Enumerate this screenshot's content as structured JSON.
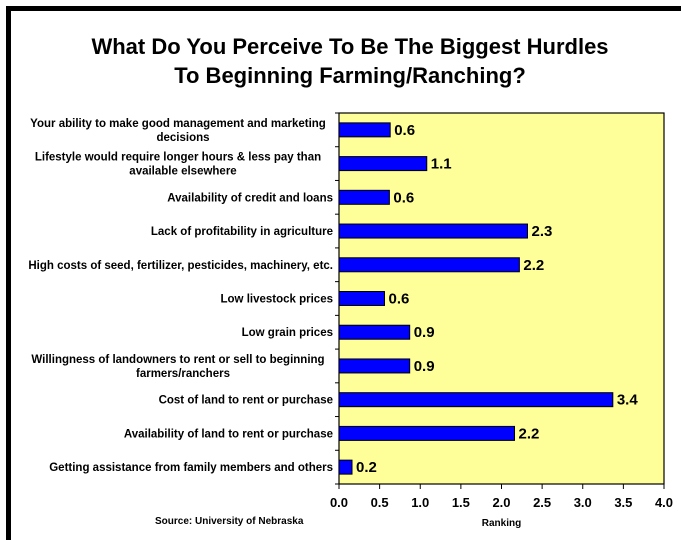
{
  "source": "Source:  University of Nebraska",
  "chart_data": {
    "type": "bar",
    "orientation": "horizontal",
    "title": [
      "What Do You Perceive To Be The Biggest Hurdles",
      "To Beginning Farming/Ranching?"
    ],
    "xlabel": "Ranking",
    "xlim": [
      0,
      4
    ],
    "xticks": [
      "0.0",
      "0.5",
      "1.0",
      "1.5",
      "2.0",
      "2.5",
      "3.0",
      "3.5",
      "4.0"
    ],
    "categories": [
      [
        "Your ability to make good management and marketing",
        "decisions"
      ],
      [
        "Lifestyle would require longer hours & less pay than",
        "available elsewhere"
      ],
      [
        "Availability of credit and loans"
      ],
      [
        "Lack of profitability in agriculture"
      ],
      [
        "High costs of seed, fertilizer, pesticides, machinery, etc."
      ],
      [
        "Low livestock prices"
      ],
      [
        "Low grain prices"
      ],
      [
        "Willingness of landowners to rent or sell to beginning",
        "farmers/ranchers"
      ],
      [
        "Cost of land to rent or purchase"
      ],
      [
        "Availability of land to rent or purchase"
      ],
      [
        "Getting assistance from family members and others"
      ]
    ],
    "values": [
      0.63,
      1.08,
      0.62,
      2.32,
      2.22,
      0.56,
      0.87,
      0.87,
      3.37,
      2.16,
      0.16
    ],
    "value_labels": [
      "0.6",
      "1.1",
      "0.6",
      "2.3",
      "2.2",
      "0.6",
      "0.9",
      "0.9",
      "3.4",
      "2.2",
      "0.2"
    ],
    "colors": {
      "bar": "#0000ff",
      "bar_edge": "#000000",
      "plot_bg": "#ffff99"
    },
    "grid": false
  }
}
